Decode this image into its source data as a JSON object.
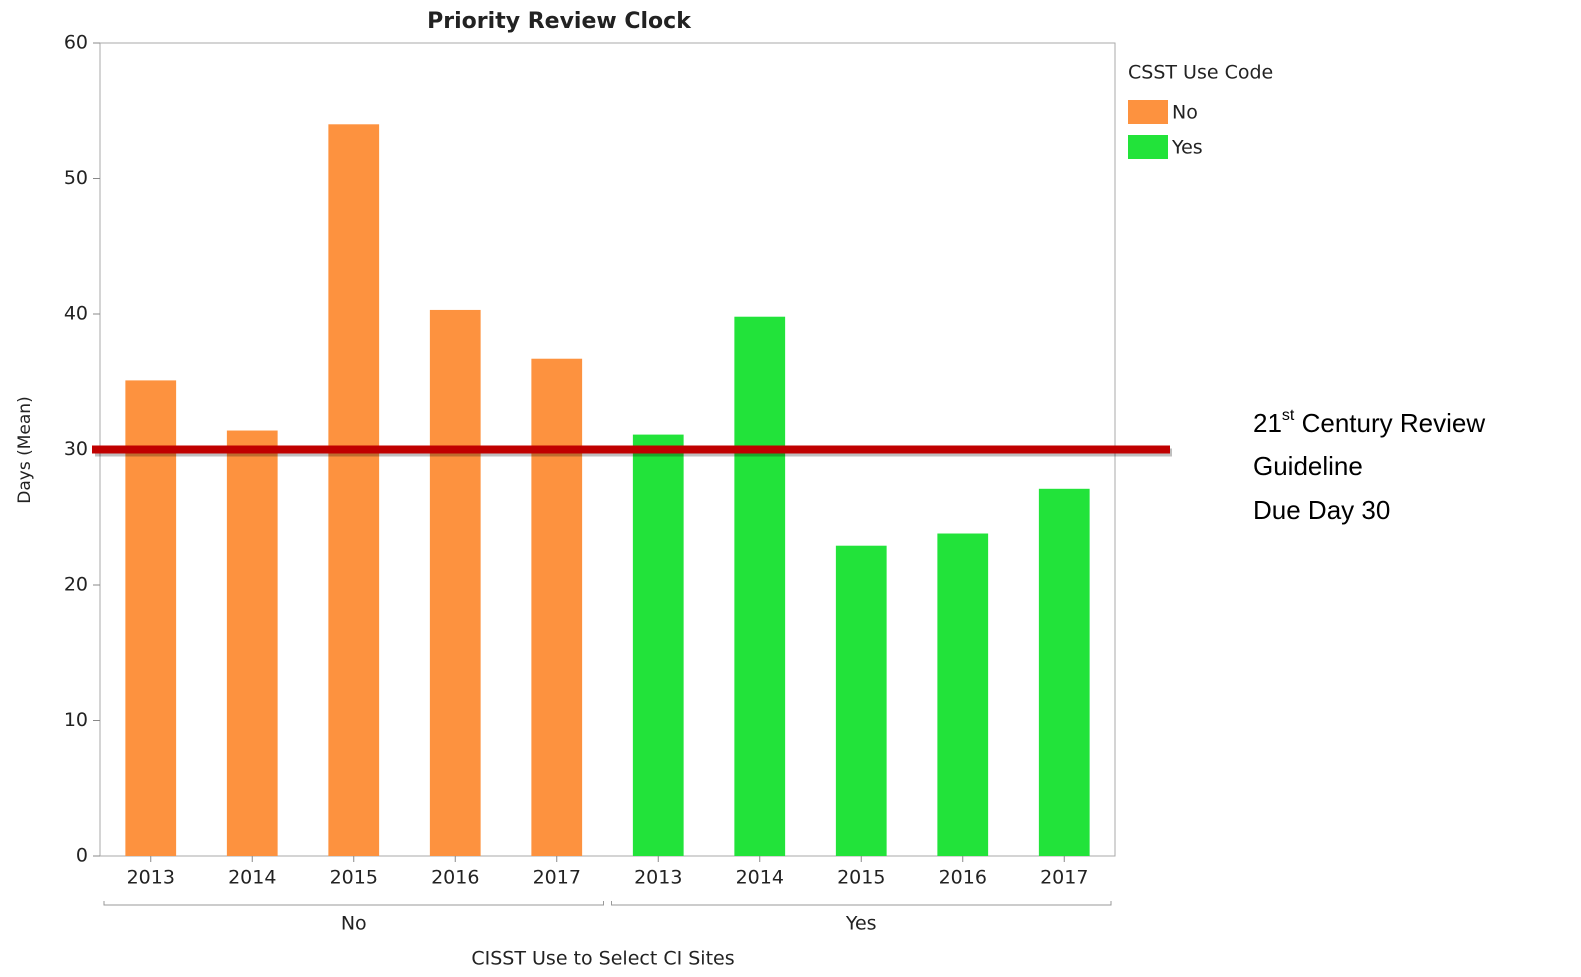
{
  "chart_data": {
    "type": "bar",
    "title": "Priority Review Clock",
    "categories": [
      "2013",
      "2014",
      "2015",
      "2016",
      "2017",
      "2013",
      "2014",
      "2015",
      "2016",
      "2017"
    ],
    "groups": [
      "No",
      "Yes"
    ],
    "series": [
      {
        "name": "No",
        "color": "#fd923f",
        "values": [
          35.1,
          31.4,
          54,
          40.3,
          36.7,
          null,
          null,
          null,
          null,
          null
        ]
      },
      {
        "name": "Yes",
        "color": "#22e33a",
        "values": [
          null,
          null,
          null,
          null,
          null,
          31.1,
          39.8,
          22.9,
          23.8,
          27.1
        ]
      }
    ],
    "legend_title": "CSST Use Code",
    "xlabel": "CISST Use to Select CI Sites",
    "ylabel": "Days (Mean)",
    "ylim": [
      0,
      60
    ],
    "yticks": [
      0,
      10,
      20,
      30,
      40,
      50,
      60
    ],
    "reference_line": {
      "value": 30,
      "color": "#c00000"
    },
    "annotation": {
      "prefix": "21",
      "sup": "st",
      "rest": " Century Review",
      "line2": "Guideline",
      "line3": "Due Day 30"
    }
  }
}
